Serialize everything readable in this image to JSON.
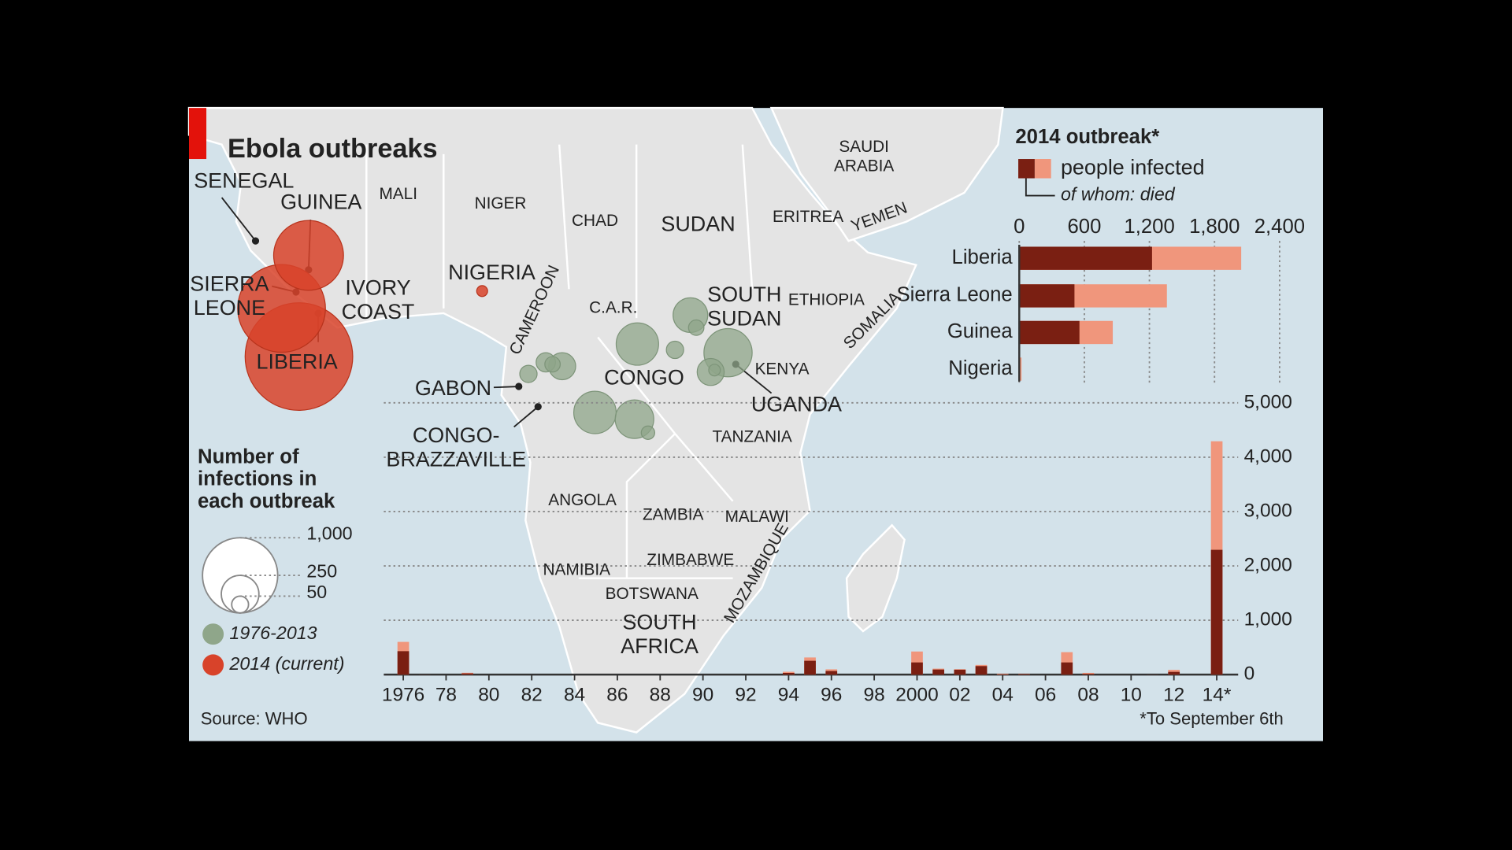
{
  "title": "Ebola outbreaks",
  "source": "Source: WHO",
  "footnote": "*To September 6th",
  "map": {
    "labels": [
      [
        "SENEGAL"
      ],
      [
        "GUINEA"
      ],
      [
        "SIERRA",
        "LEONE"
      ],
      [
        "LIBERIA"
      ],
      [
        "IVORY",
        "COAST"
      ],
      [
        "MALI"
      ],
      [
        "NIGER"
      ],
      [
        "NIGERIA"
      ],
      [
        "CHAD"
      ],
      [
        "SUDAN"
      ],
      [
        "ERITREA"
      ],
      [
        "YEMEN"
      ],
      [
        "SAUDI",
        "ARABIA"
      ],
      [
        "SOUTH",
        "SUDAN"
      ],
      [
        "ETHIOPIA"
      ],
      [
        "SOMALIA"
      ],
      [
        "C.A.R."
      ],
      [
        "CAMEROON"
      ],
      [
        "GABON"
      ],
      [
        "CONGO"
      ],
      [
        "CONGO-",
        "BRAZZAVILLE"
      ],
      [
        "KENYA"
      ],
      [
        "UGANDA"
      ],
      [
        "TANZANIA"
      ],
      [
        "ANGOLA"
      ],
      [
        "ZAMBIA"
      ],
      [
        "MALAWI"
      ],
      [
        "MOZAMBIQUE"
      ],
      [
        "NAMIBIA"
      ],
      [
        "ZIMBABWE"
      ],
      [
        "BOTSWANA"
      ],
      [
        "SOUTH",
        "AFRICA"
      ]
    ],
    "historical_outbreaks": [
      318,
      263,
      318,
      213,
      411,
      129,
      129,
      66,
      53,
      42,
      53,
      42,
      32,
      24
    ],
    "bubble_legend": {
      "title": [
        "Number of",
        "infections in",
        "each outbreak"
      ],
      "sizes": [
        {
          "value": 1000,
          "label": "1,000"
        },
        250,
        50
      ],
      "entries": [
        {
          "label": "1976-2013",
          "color": "#8fa68a"
        },
        {
          "label": "2014 (current)",
          "color": "#d8432a"
        }
      ]
    }
  },
  "chart_data": [
    {
      "type": "hbar",
      "title": "2014 outbreak*",
      "categories": [
        "Liberia",
        "Sierra Leone",
        "Guinea",
        "Nigeria"
      ],
      "series": [
        {
          "name": "people infected",
          "color": "#f0967c",
          "values": [
            2046,
            1361,
            862,
            21
          ]
        },
        {
          "name": "of whom: died",
          "color": "#7a1f12",
          "values": [
            1224,
            509,
            555,
            8
          ]
        }
      ],
      "xlim": [
        0,
        2400
      ],
      "xticks": [
        0,
        600,
        {
          "value": 1200,
          "label": "1,200"
        },
        {
          "value": 1800,
          "label": "1,800"
        },
        {
          "value": 2400,
          "label": "2,400"
        }
      ],
      "grid": true
    },
    {
      "type": "bar",
      "x": [
        1976,
        1977,
        1979,
        1994,
        1995,
        1996,
        2000,
        2001,
        2002,
        2003,
        2004,
        2005,
        2007,
        2008,
        2011,
        2012,
        2014
      ],
      "series": [
        {
          "color": "#f0967c",
          "values": [
            602,
            1,
            34,
            52,
            315,
            97,
            425,
            110,
            100,
            178,
            17,
            12,
            413,
            32,
            1,
            88,
            4293
          ]
        },
        {
          "color": "#7a1f12",
          "values": [
            431,
            1,
            22,
            31,
            254,
            66,
            224,
            93,
            90,
            157,
            7,
            10,
            224,
            15,
            1,
            50,
            2296
          ]
        }
      ],
      "xlim": [
        1975,
        2015
      ],
      "xticks": [
        1976,
        {
          "value": 1978,
          "label": "78"
        },
        {
          "value": 1980,
          "label": "80"
        },
        {
          "value": 1982,
          "label": "82"
        },
        {
          "value": 1984,
          "label": "84"
        },
        {
          "value": 1986,
          "label": "86"
        },
        {
          "value": 1988,
          "label": "88"
        },
        {
          "value": 1990,
          "label": "90"
        },
        {
          "value": 1992,
          "label": "92"
        },
        {
          "value": 1994,
          "label": "94"
        },
        {
          "value": 1996,
          "label": "96"
        },
        {
          "value": 1998,
          "label": "98"
        },
        2000,
        {
          "value": 2002,
          "label": "02"
        },
        {
          "value": 2004,
          "label": "04"
        },
        {
          "value": 2006,
          "label": "06"
        },
        {
          "value": 2008,
          "label": "08"
        },
        {
          "value": 2010,
          "label": "10"
        },
        {
          "value": 2012,
          "label": "12"
        },
        {
          "value": 2014,
          "label": "14*"
        }
      ],
      "ylim": [
        0,
        5000
      ],
      "yticks": [
        0,
        {
          "value": 1000,
          "label": "1,000"
        },
        {
          "value": 2000,
          "label": "2,000"
        },
        {
          "value": 3000,
          "label": "3,000"
        },
        {
          "value": 4000,
          "label": "4,000"
        },
        {
          "value": 5000,
          "label": "5,000"
        }
      ],
      "grid": true
    }
  ]
}
